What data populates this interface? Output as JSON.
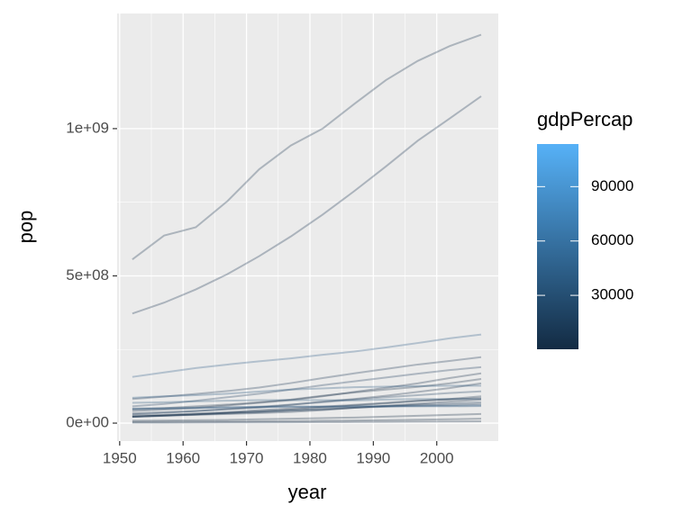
{
  "chart_data": {
    "type": "line",
    "x_label": "year",
    "y_label": "pop",
    "x": [
      1952,
      1957,
      1962,
      1967,
      1972,
      1977,
      1982,
      1987,
      1992,
      1997,
      2002,
      2007
    ],
    "xlim": [
      1949.6,
      2009.7
    ],
    "xticks": [
      1950,
      1960,
      1970,
      1980,
      1990,
      2000
    ],
    "ylim": [
      -61000000,
      1391000000
    ],
    "yticks": [
      {
        "value": 0,
        "label": "0e+00"
      },
      {
        "value": 500000000,
        "label": "5e+08"
      },
      {
        "value": 1000000000,
        "label": "1e+09"
      }
    ],
    "grid": true,
    "line_alpha": 0.3,
    "series": [
      {
        "color": "#1a3550",
        "values": [
          556000000,
          637000000,
          665000000,
          754000000,
          862000000,
          943000000,
          1000000000,
          1084000000,
          1165000000,
          1230000000,
          1280000000,
          1319000000
        ]
      },
      {
        "color": "#183250",
        "values": [
          372000000,
          409000000,
          454000000,
          506000000,
          567000000,
          634000000,
          708000000,
          788000000,
          872000000,
          959000000,
          1034000000,
          1110000000
        ]
      },
      {
        "color": "#2d5d88",
        "values": [
          157000000,
          172000000,
          187000000,
          199000000,
          210000000,
          220000000,
          232000000,
          243000000,
          257000000,
          272000000,
          288000000,
          301000000
        ]
      },
      {
        "color": "#1a3552",
        "values": [
          82000000,
          90000000,
          99000000,
          109000000,
          121000000,
          136000000,
          153000000,
          169000000,
          184000000,
          199000000,
          211000000,
          224000000
        ]
      },
      {
        "color": "#1e3d5c",
        "values": [
          57000000,
          65000000,
          76000000,
          88000000,
          100000000,
          114000000,
          129000000,
          142000000,
          155000000,
          168000000,
          180000000,
          190000000
        ]
      },
      {
        "color": "#172f49",
        "values": [
          41000000,
          46000000,
          51000000,
          60000000,
          69000000,
          78000000,
          91000000,
          106000000,
          120000000,
          135000000,
          153000000,
          169000000
        ]
      },
      {
        "color": "#162e47",
        "values": [
          47000000,
          51000000,
          57000000,
          63000000,
          71000000,
          80000000,
          93000000,
          104000000,
          114000000,
          123000000,
          135000000,
          150000000
        ]
      },
      {
        "color": "#172f48",
        "values": [
          33000000,
          37000000,
          41000000,
          47000000,
          53000000,
          62000000,
          73000000,
          82000000,
          93000000,
          106000000,
          119000000,
          135000000
        ]
      },
      {
        "color": "#29567e",
        "values": [
          86000000,
          91000000,
          95000000,
          100000000,
          107000000,
          114000000,
          118000000,
          122000000,
          124000000,
          126000000,
          127000000,
          127000000
        ]
      },
      {
        "color": "#1f405f",
        "values": [
          30000000,
          35000000,
          41000000,
          48000000,
          55000000,
          63000000,
          71000000,
          80000000,
          88000000,
          95000000,
          102000000,
          108000000
        ]
      },
      {
        "color": "#2a587f",
        "values": [
          69000000,
          71000000,
          74000000,
          76000000,
          78000000,
          78000000,
          78000000,
          77000000,
          80000000,
          82000000,
          82000000,
          82000000
        ]
      },
      {
        "color": "#1b3755",
        "values": [
          21000000,
          26000000,
          30000000,
          35000000,
          39000000,
          44000000,
          48000000,
          52000000,
          56000000,
          60000000,
          62000000,
          65000000
        ]
      },
      {
        "color": "#1d3b59",
        "values": [
          22000000,
          25000000,
          29000000,
          33000000,
          37000000,
          42000000,
          46000000,
          53000000,
          58000000,
          63000000,
          67000000,
          71000000
        ]
      },
      {
        "color": "#18314c",
        "values": [
          22000000,
          26000000,
          30000000,
          35000000,
          40000000,
          46000000,
          53000000,
          60000000,
          67000000,
          75000000,
          82000000,
          91000000
        ]
      },
      {
        "color": "#152c45",
        "values": [
          26000000,
          28000000,
          33000000,
          37000000,
          44000000,
          50000000,
          56000000,
          62000000,
          69000000,
          76000000,
          80000000,
          85000000
        ]
      },
      {
        "color": "#17304a",
        "values": [
          22000000,
          25000000,
          28000000,
          31000000,
          34000000,
          38000000,
          44000000,
          52000000,
          59000000,
          66000000,
          73000000,
          80000000
        ]
      },
      {
        "color": "#27527a",
        "values": [
          47000000,
          49000000,
          51000000,
          53000000,
          54000000,
          56000000,
          56000000,
          57000000,
          57000000,
          57000000,
          57000000,
          58000000
        ]
      },
      {
        "color": "#28547b",
        "values": [
          50000000,
          51000000,
          53000000,
          54000000,
          56000000,
          56000000,
          56000000,
          56000000,
          57000000,
          58000000,
          59000000,
          60000000
        ]
      },
      {
        "color": "#132b43",
        "values": [
          8000000,
          9000000,
          10000000,
          11000000,
          13000000,
          15000000,
          17000000,
          19000000,
          22000000,
          25000000,
          28000000,
          31000000
        ]
      },
      {
        "color": "#132b43",
        "values": [
          4000000,
          4500000,
          5000000,
          5600000,
          6300000,
          7000000,
          8000000,
          9000000,
          10000000,
          11500000,
          13000000,
          15000000
        ]
      },
      {
        "color": "#142c44",
        "values": [
          1500000,
          1700000,
          2000000,
          2300000,
          2600000,
          3000000,
          3400000,
          3900000,
          4400000,
          5000000,
          5500000,
          6000000
        ]
      }
    ],
    "legend": {
      "title": "gdpPercap",
      "limits": [
        241,
        113523
      ],
      "ticks": [
        30000,
        60000,
        90000
      ],
      "colors": [
        "#132B43",
        "#56B1F7"
      ]
    }
  }
}
